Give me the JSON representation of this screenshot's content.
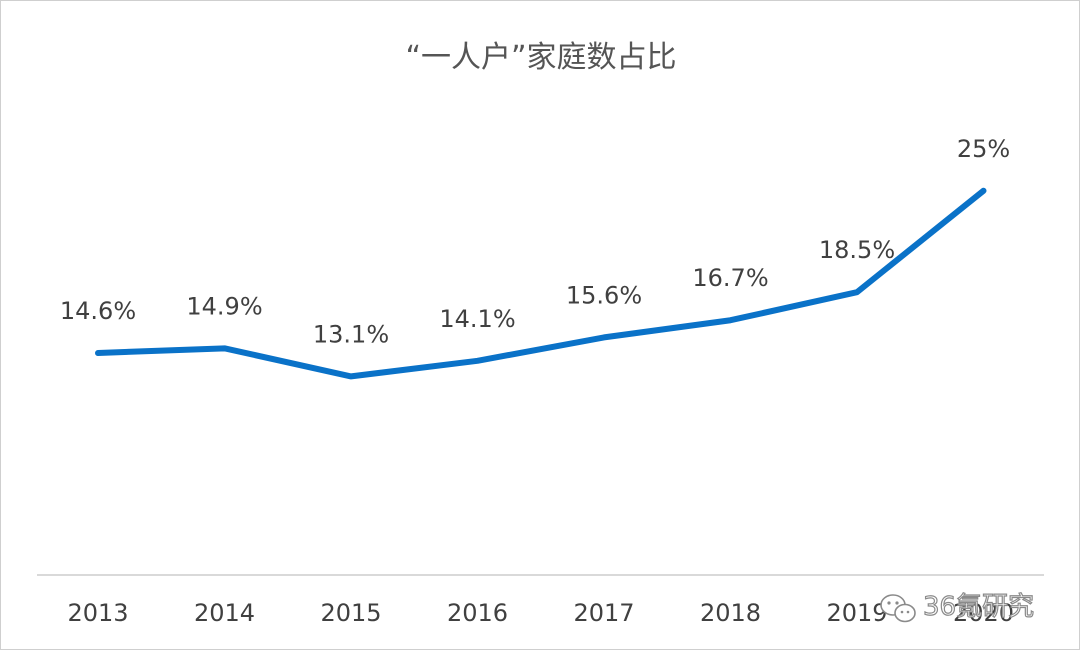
{
  "chart_data": {
    "type": "line",
    "title": "“一人户”家庭数占比",
    "categories": [
      "2013",
      "2014",
      "2015",
      "2016",
      "2017",
      "2018",
      "2019",
      "2020"
    ],
    "values": [
      14.6,
      14.9,
      13.1,
      14.1,
      15.6,
      16.7,
      18.5,
      25
    ],
    "data_labels": [
      "14.6%",
      "14.9%",
      "13.1%",
      "14.1%",
      "15.6%",
      "16.7%",
      "18.5%",
      "25%"
    ],
    "xlabel": "",
    "ylabel": "",
    "grid": false,
    "legend": "none",
    "line_color": "#0a72c8"
  },
  "watermark": {
    "text": "36氪研究",
    "icon": "wechat-icon"
  }
}
